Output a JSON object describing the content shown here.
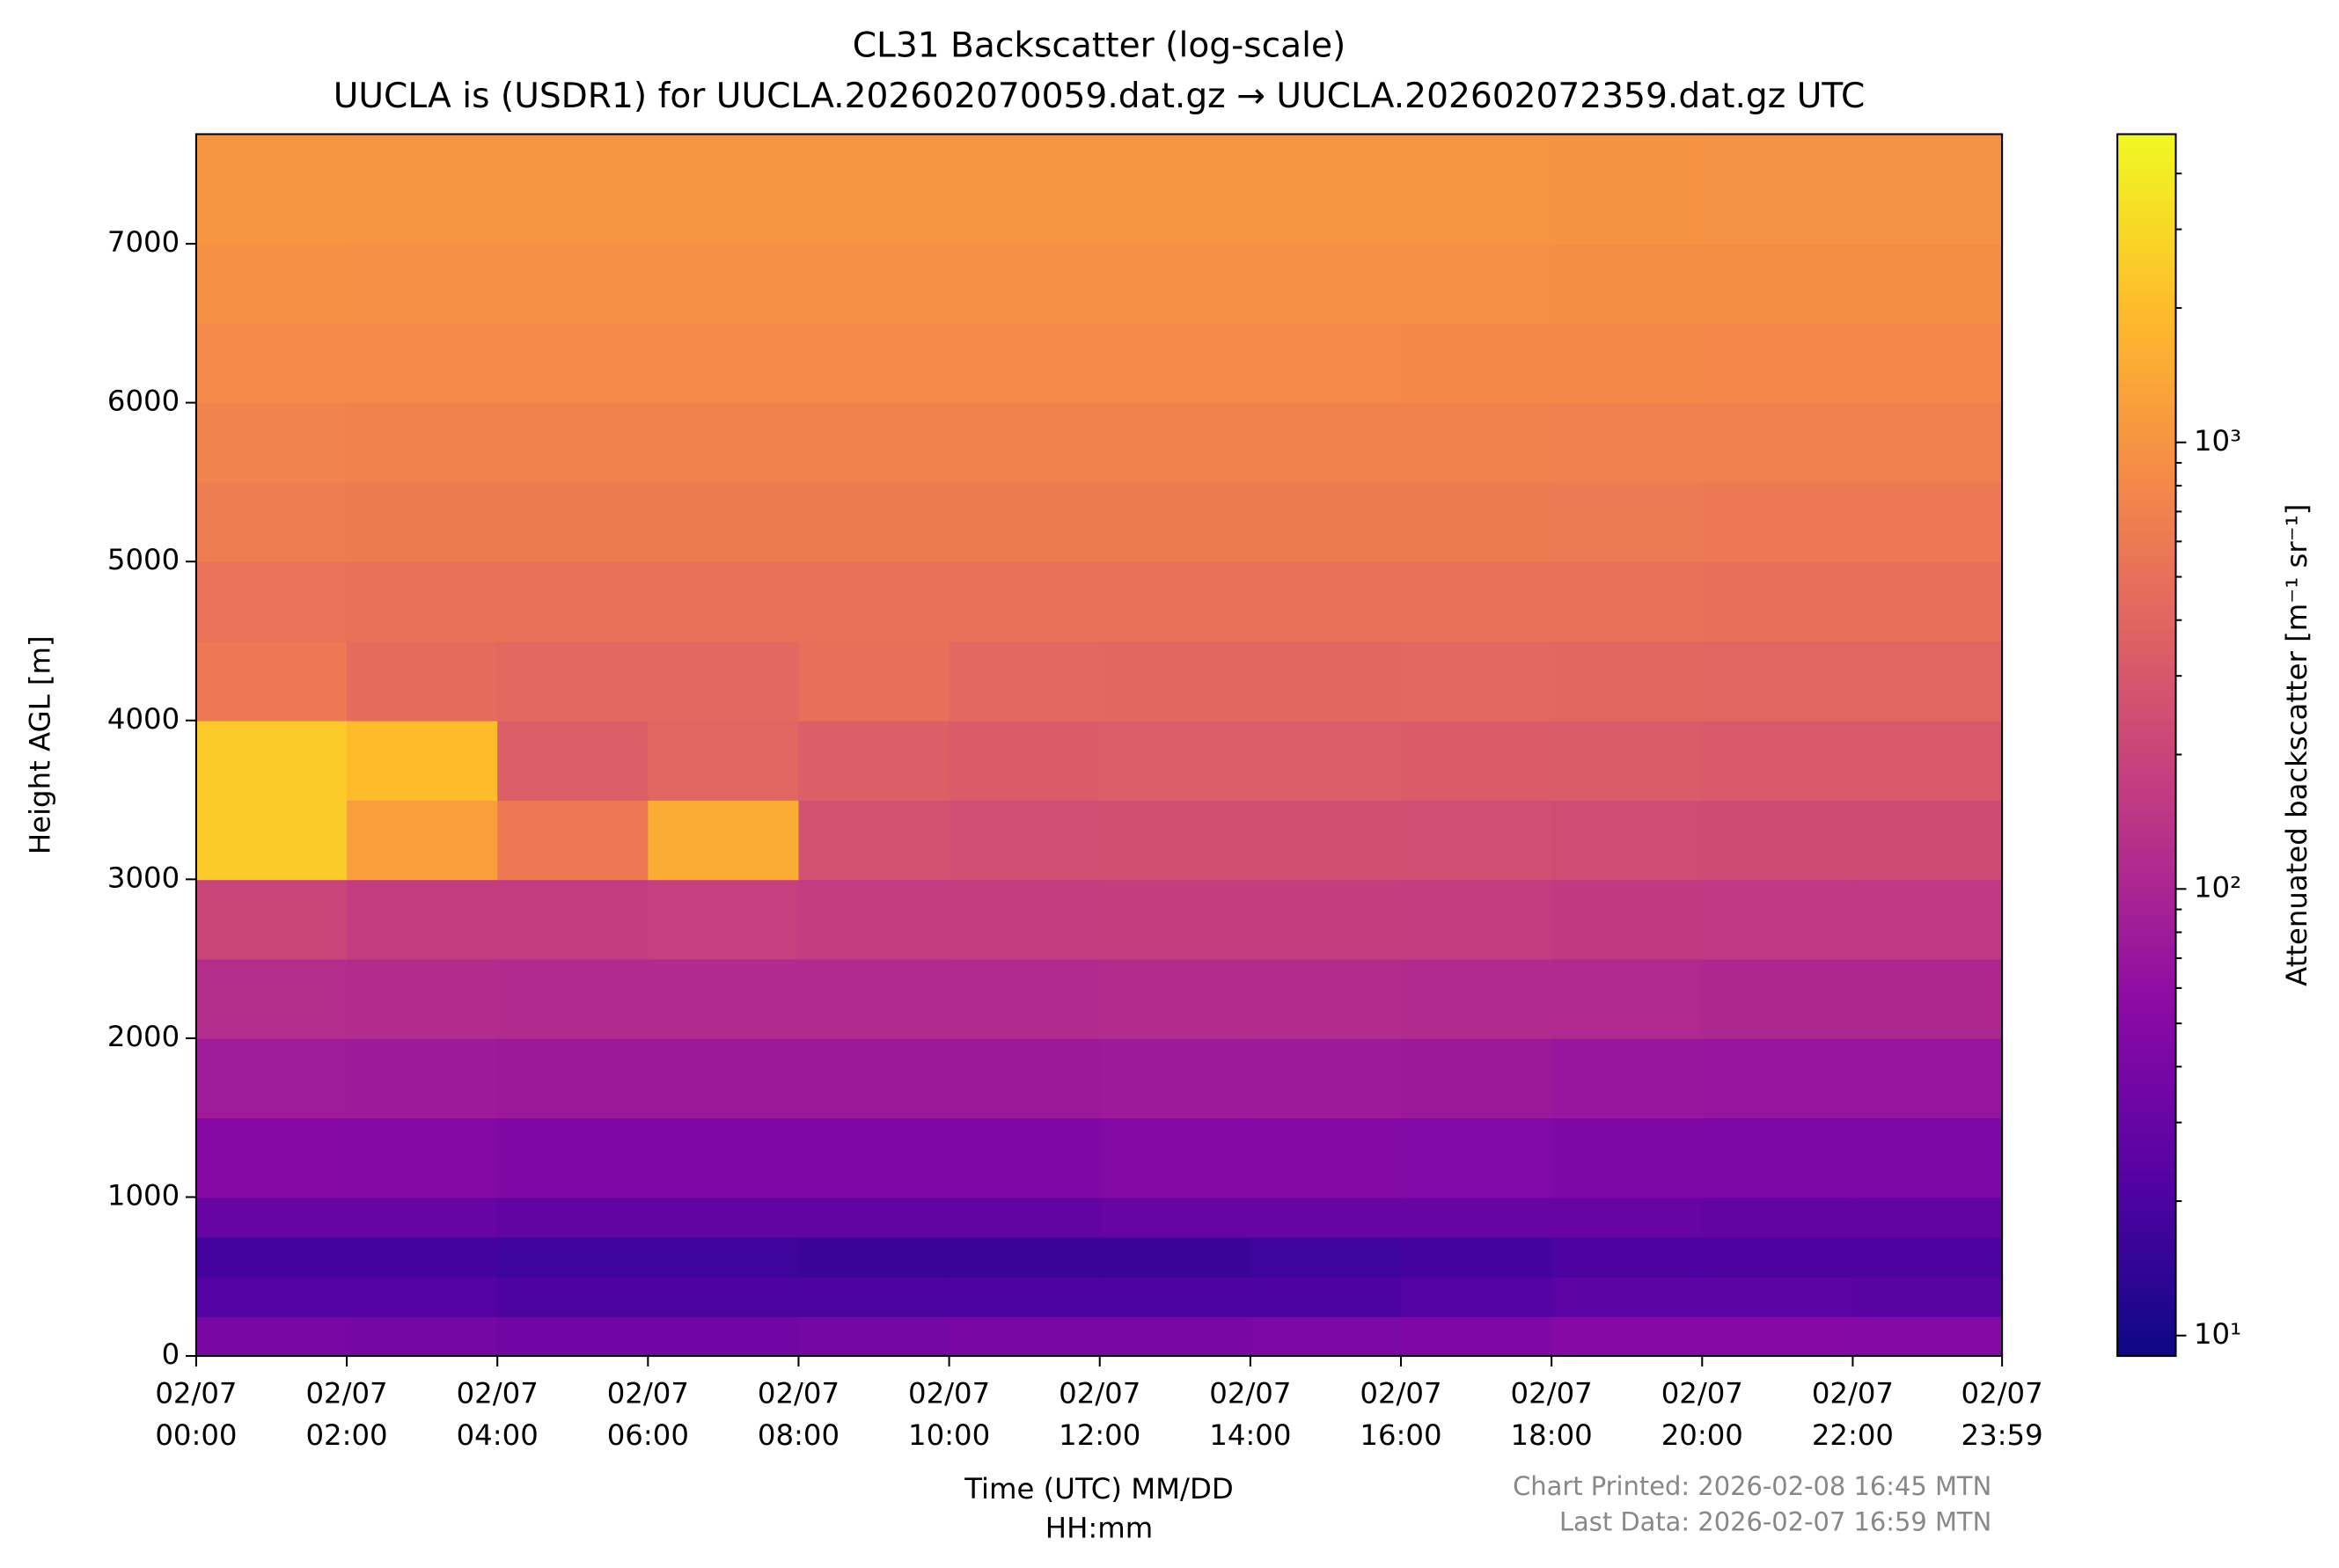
{
  "chart_data": {
    "type": "heatmap",
    "title": [
      "CL31 Backscatter (log-scale)",
      "UUCLA is (USDR1) for UUCLA.202602070059.dat.gz → UUCLA.202602072359.dat.gz UTC"
    ],
    "xlabel": [
      "Time (UTC) MM/DD",
      "HH:mm"
    ],
    "ylabel": "Height AGL [m]",
    "colorbar_label": "Attenuated backscatter [m⁻¹ sr⁻¹]",
    "footnotes": [
      "Chart Printed: 2026-02-08 16:45 MTN",
      "Last Data: 2026-02-07 16:59 MTN"
    ],
    "xlim": [
      0,
      1439
    ],
    "xticks": [
      {
        "value": 0,
        "label": [
          "02/07",
          "00:00"
        ]
      },
      {
        "value": 120,
        "label": [
          "02/07",
          "02:00"
        ]
      },
      {
        "value": 240,
        "label": [
          "02/07",
          "04:00"
        ]
      },
      {
        "value": 360,
        "label": [
          "02/07",
          "06:00"
        ]
      },
      {
        "value": 480,
        "label": [
          "02/07",
          "08:00"
        ]
      },
      {
        "value": 600,
        "label": [
          "02/07",
          "10:00"
        ]
      },
      {
        "value": 720,
        "label": [
          "02/07",
          "12:00"
        ]
      },
      {
        "value": 840,
        "label": [
          "02/07",
          "14:00"
        ]
      },
      {
        "value": 960,
        "label": [
          "02/07",
          "16:00"
        ]
      },
      {
        "value": 1080,
        "label": [
          "02/07",
          "18:00"
        ]
      },
      {
        "value": 1200,
        "label": [
          "02/07",
          "20:00"
        ]
      },
      {
        "value": 1320,
        "label": [
          "02/07",
          "22:00"
        ]
      },
      {
        "value": 1439,
        "label": [
          "02/07",
          "23:59"
        ]
      }
    ],
    "ylim": [
      0,
      7690
    ],
    "yticks": [
      0,
      1000,
      2000,
      3000,
      4000,
      5000,
      6000,
      7000
    ],
    "clim": [
      9,
      4900
    ],
    "log_color_scale": true,
    "colormap": "plasma",
    "cticks": [
      {
        "value": 10,
        "label": "10¹"
      },
      {
        "value": 100,
        "label": "10²"
      },
      {
        "value": 1000,
        "label": "10³"
      }
    ],
    "xbins": [
      0,
      120,
      240,
      360,
      480,
      600,
      720,
      840,
      960,
      1080,
      1200,
      1320,
      1439
    ],
    "ybins": [
      0,
      250,
      500,
      750,
      1000,
      1500,
      2000,
      2500,
      3000,
      3500,
      4000,
      4500,
      5000,
      5500,
      6000,
      6500,
      7000,
      7690
    ],
    "values": [
      [
        40,
        38,
        35,
        35,
        38,
        40,
        40,
        42,
        45,
        50,
        50,
        48
      ],
      [
        22,
        22,
        20,
        20,
        20,
        20,
        20,
        20,
        22,
        25,
        25,
        24
      ],
      [
        18,
        18,
        17,
        17,
        16,
        16,
        16,
        17,
        18,
        20,
        20,
        20
      ],
      [
        30,
        30,
        28,
        28,
        28,
        28,
        30,
        30,
        30,
        30,
        28,
        28
      ],
      [
        50,
        48,
        45,
        45,
        45,
        45,
        48,
        48,
        46,
        44,
        42,
        42
      ],
      [
        80,
        78,
        75,
        75,
        75,
        75,
        78,
        78,
        75,
        70,
        68,
        68
      ],
      [
        120,
        118,
        115,
        115,
        115,
        115,
        118,
        118,
        115,
        110,
        105,
        105
      ],
      [
        200,
        170,
        165,
        180,
        165,
        170,
        175,
        175,
        170,
        160,
        155,
        155
      ],
      [
        2500,
        1200,
        600,
        1500,
        260,
        250,
        255,
        255,
        250,
        240,
        230,
        230
      ],
      [
        2500,
        2000,
        340,
        400,
        340,
        330,
        335,
        335,
        330,
        320,
        310,
        310
      ],
      [
        600,
        450,
        420,
        420,
        500,
        420,
        425,
        425,
        420,
        410,
        400,
        400
      ],
      [
        530,
        520,
        520,
        520,
        520,
        520,
        520,
        520,
        515,
        510,
        500,
        500
      ],
      [
        630,
        620,
        620,
        620,
        620,
        620,
        620,
        620,
        615,
        610,
        600,
        600
      ],
      [
        730,
        720,
        720,
        720,
        720,
        720,
        720,
        720,
        715,
        705,
        700,
        700
      ],
      [
        830,
        820,
        820,
        820,
        820,
        820,
        820,
        820,
        815,
        805,
        800,
        800
      ],
      [
        930,
        920,
        920,
        920,
        920,
        920,
        920,
        920,
        915,
        905,
        900,
        900
      ],
      [
        1020,
        1000,
        1000,
        1000,
        1000,
        1000,
        1000,
        1000,
        990,
        980,
        970,
        970
      ]
    ]
  }
}
